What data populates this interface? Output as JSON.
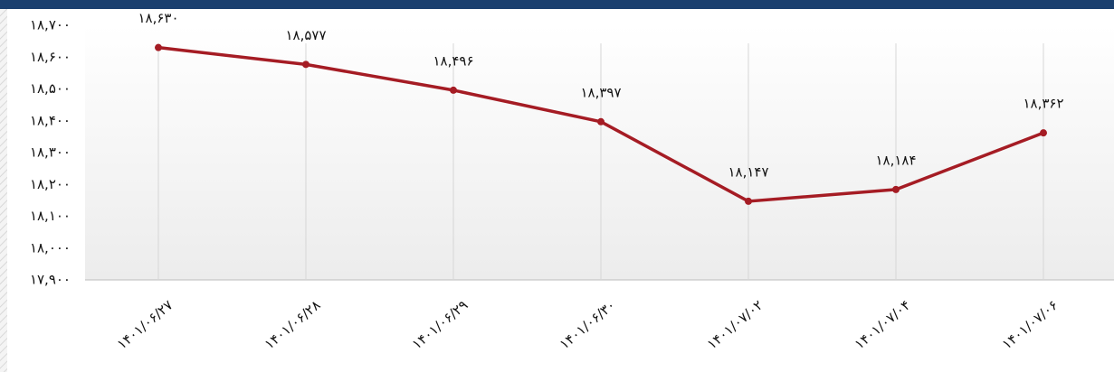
{
  "chart_data": {
    "type": "line",
    "categories": [
      "۱۴۰۱/۰۶/۲۷",
      "۱۴۰۱/۰۶/۲۸",
      "۱۴۰۱/۰۶/۲۹",
      "۱۴۰۱/۰۶/۳۰",
      "۱۴۰۱/۰۷/۰۲",
      "۱۴۰۱/۰۷/۰۴",
      "۱۴۰۱/۰۷/۰۶"
    ],
    "values": [
      18630,
      18577,
      18496,
      18397,
      18147,
      18184,
      18362
    ],
    "value_labels": [
      "۱۸,۶۳۰",
      "۱۸,۵۷۷",
      "۱۸,۴۹۶",
      "۱۸,۳۹۷",
      "۱۸,۱۴۷",
      "۱۸,۱۸۴",
      "۱۸,۳۶۲"
    ],
    "color": "#a51c24",
    "ylim": [
      17900,
      18700
    ],
    "yticks": [
      {
        "value": 17900,
        "label": "۱۷,۹۰۰"
      },
      {
        "value": 18000,
        "label": "۱۸,۰۰۰"
      },
      {
        "value": 18100,
        "label": "۱۸,۱۰۰"
      },
      {
        "value": 18200,
        "label": "۱۸,۲۰۰"
      },
      {
        "value": 18300,
        "label": "۱۸,۳۰۰"
      },
      {
        "value": 18400,
        "label": "۱۸,۴۰۰"
      },
      {
        "value": 18500,
        "label": "۱۸,۵۰۰"
      },
      {
        "value": 18600,
        "label": "۱۸,۶۰۰"
      },
      {
        "value": 18700,
        "label": "۱۸,۷۰۰"
      }
    ],
    "grid": true
  }
}
